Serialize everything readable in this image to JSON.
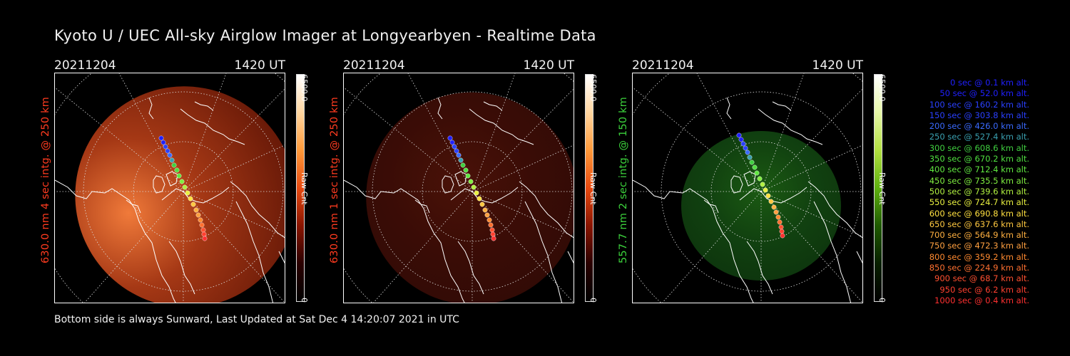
{
  "title": "Kyoto U / UEC All-sky Airglow Imager at Longyearbyen - Realtime Data",
  "panels": [
    {
      "date": "20211204",
      "time": "1420 UT",
      "ylabel": "630.0 nm 4 sec intg. @ 250 km",
      "label_color": "#ff3b1f",
      "colorbar_max": "6500.0",
      "colorbar_min": "0",
      "colorbar_unit": "Raw Cnt",
      "colorbar_gradient": [
        "#ffffff",
        "#ffd6a0",
        "#ff9a3a",
        "#e84a10",
        "#8a1500",
        "#2a0000",
        "#000000"
      ],
      "airglow_level": 0.72
    },
    {
      "date": "20211204",
      "time": "1420 UT",
      "ylabel": "630.0 nm 1 sec intg. @ 250 km",
      "label_color": "#ff3b1f",
      "colorbar_max": "6500.0",
      "colorbar_min": "0",
      "colorbar_unit": "Raw Cnt",
      "colorbar_gradient": [
        "#ffffff",
        "#ffd6a0",
        "#ff9a3a",
        "#e84a10",
        "#8a1500",
        "#2a0000",
        "#000000"
      ],
      "airglow_level": 0.22
    },
    {
      "date": "20211204",
      "time": "1420 UT",
      "ylabel": "557.7 nm 2 sec intg. @ 150 km",
      "label_color": "#3cd23c",
      "colorbar_max": "6500.0",
      "colorbar_min": "0",
      "colorbar_unit": "Raw Cnt",
      "colorbar_gradient": [
        "#ffffff",
        "#e7f7a8",
        "#b2e040",
        "#5fb010",
        "#1f5a00",
        "#082000",
        "#000000"
      ],
      "airglow_level": 0.45
    }
  ],
  "legend": [
    {
      "text": "0 sec @   0.1 km alt.",
      "color": "#2020ff"
    },
    {
      "text": "50 sec @  52.0 km alt.",
      "color": "#2020ff"
    },
    {
      "text": "100 sec @ 160.2 km alt.",
      "color": "#2a40ff"
    },
    {
      "text": "150 sec @ 303.8 km alt.",
      "color": "#2a40ff"
    },
    {
      "text": "200 sec @ 426.0 km alt.",
      "color": "#3a6aff"
    },
    {
      "text": "250 sec @ 527.4 km alt.",
      "color": "#3aa0b0"
    },
    {
      "text": "300 sec @ 608.6 km alt.",
      "color": "#40d040"
    },
    {
      "text": "350 sec @ 670.2 km alt.",
      "color": "#50e040"
    },
    {
      "text": "400 sec @ 712.4 km alt.",
      "color": "#60e840"
    },
    {
      "text": "450 sec @ 735.5 km alt.",
      "color": "#80ee40"
    },
    {
      "text": "500 sec @ 739.6 km alt.",
      "color": "#b0f040"
    },
    {
      "text": "550 sec @ 724.7 km alt.",
      "color": "#e8f040"
    },
    {
      "text": "600 sec @ 690.8 km alt.",
      "color": "#ffe040"
    },
    {
      "text": "650 sec @ 637.6 km alt.",
      "color": "#ffc840"
    },
    {
      "text": "700 sec @ 564.9 km alt.",
      "color": "#ffb040"
    },
    {
      "text": "750 sec @ 472.3 km alt.",
      "color": "#ffa040"
    },
    {
      "text": "800 sec @ 359.2 km alt.",
      "color": "#ff8a30"
    },
    {
      "text": "850 sec @ 224.9 km alt.",
      "color": "#ff7030"
    },
    {
      "text": "900 sec @  68.7 km alt.",
      "color": "#ff5030"
    },
    {
      "text": "950 sec @   6.2 km alt.",
      "color": "#ff4030"
    },
    {
      "text": "1000 sec @   0.4 km alt.",
      "color": "#ff3030"
    }
  ],
  "footer": "Bottom side is always Sunward, Last Updated at Sat Dec  4 14:20:07 2021 in UTC"
}
